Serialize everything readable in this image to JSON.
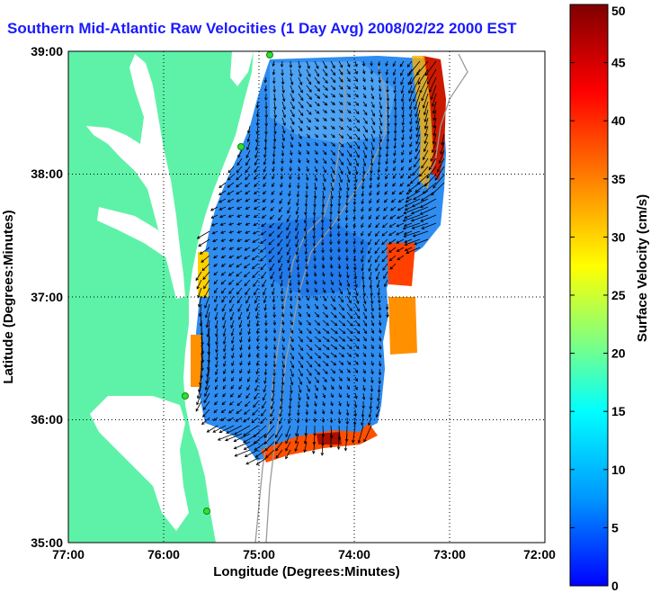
{
  "title": "Southern Mid-Atlantic Raw Velocities (1 Day Avg) 2008/02/22 2000 EST",
  "x_axis": {
    "label": "Longitude (Degrees:Minutes)",
    "ticks": [
      "77:00",
      "76:00",
      "75:00",
      "74:00",
      "73:00",
      "72:00"
    ]
  },
  "y_axis": {
    "label": "Latitude (Degrees:Minutes)",
    "ticks": [
      "39:00",
      "38:00",
      "37:00",
      "36:00",
      "35:00"
    ]
  },
  "colorbar": {
    "label": "Surface Velocity (cm/s)",
    "ticks": [
      "50",
      "45",
      "40",
      "35",
      "30",
      "25",
      "20",
      "15",
      "10",
      "5",
      "0"
    ],
    "min": 0,
    "max": 50,
    "stops": [
      "#0000ff",
      "#0096ff",
      "#00ffff",
      "#80ff80",
      "#ffff00",
      "#ff8000",
      "#ff0000",
      "#800000"
    ]
  },
  "colors": {
    "land": "#5ef2a8",
    "water": "#ffffff",
    "current_field": "#2f8cf0",
    "station_marker": "#33dd33"
  },
  "map": {
    "lon_range": [
      -77,
      -72
    ],
    "lat_range": [
      35,
      39
    ],
    "grid": true
  }
}
